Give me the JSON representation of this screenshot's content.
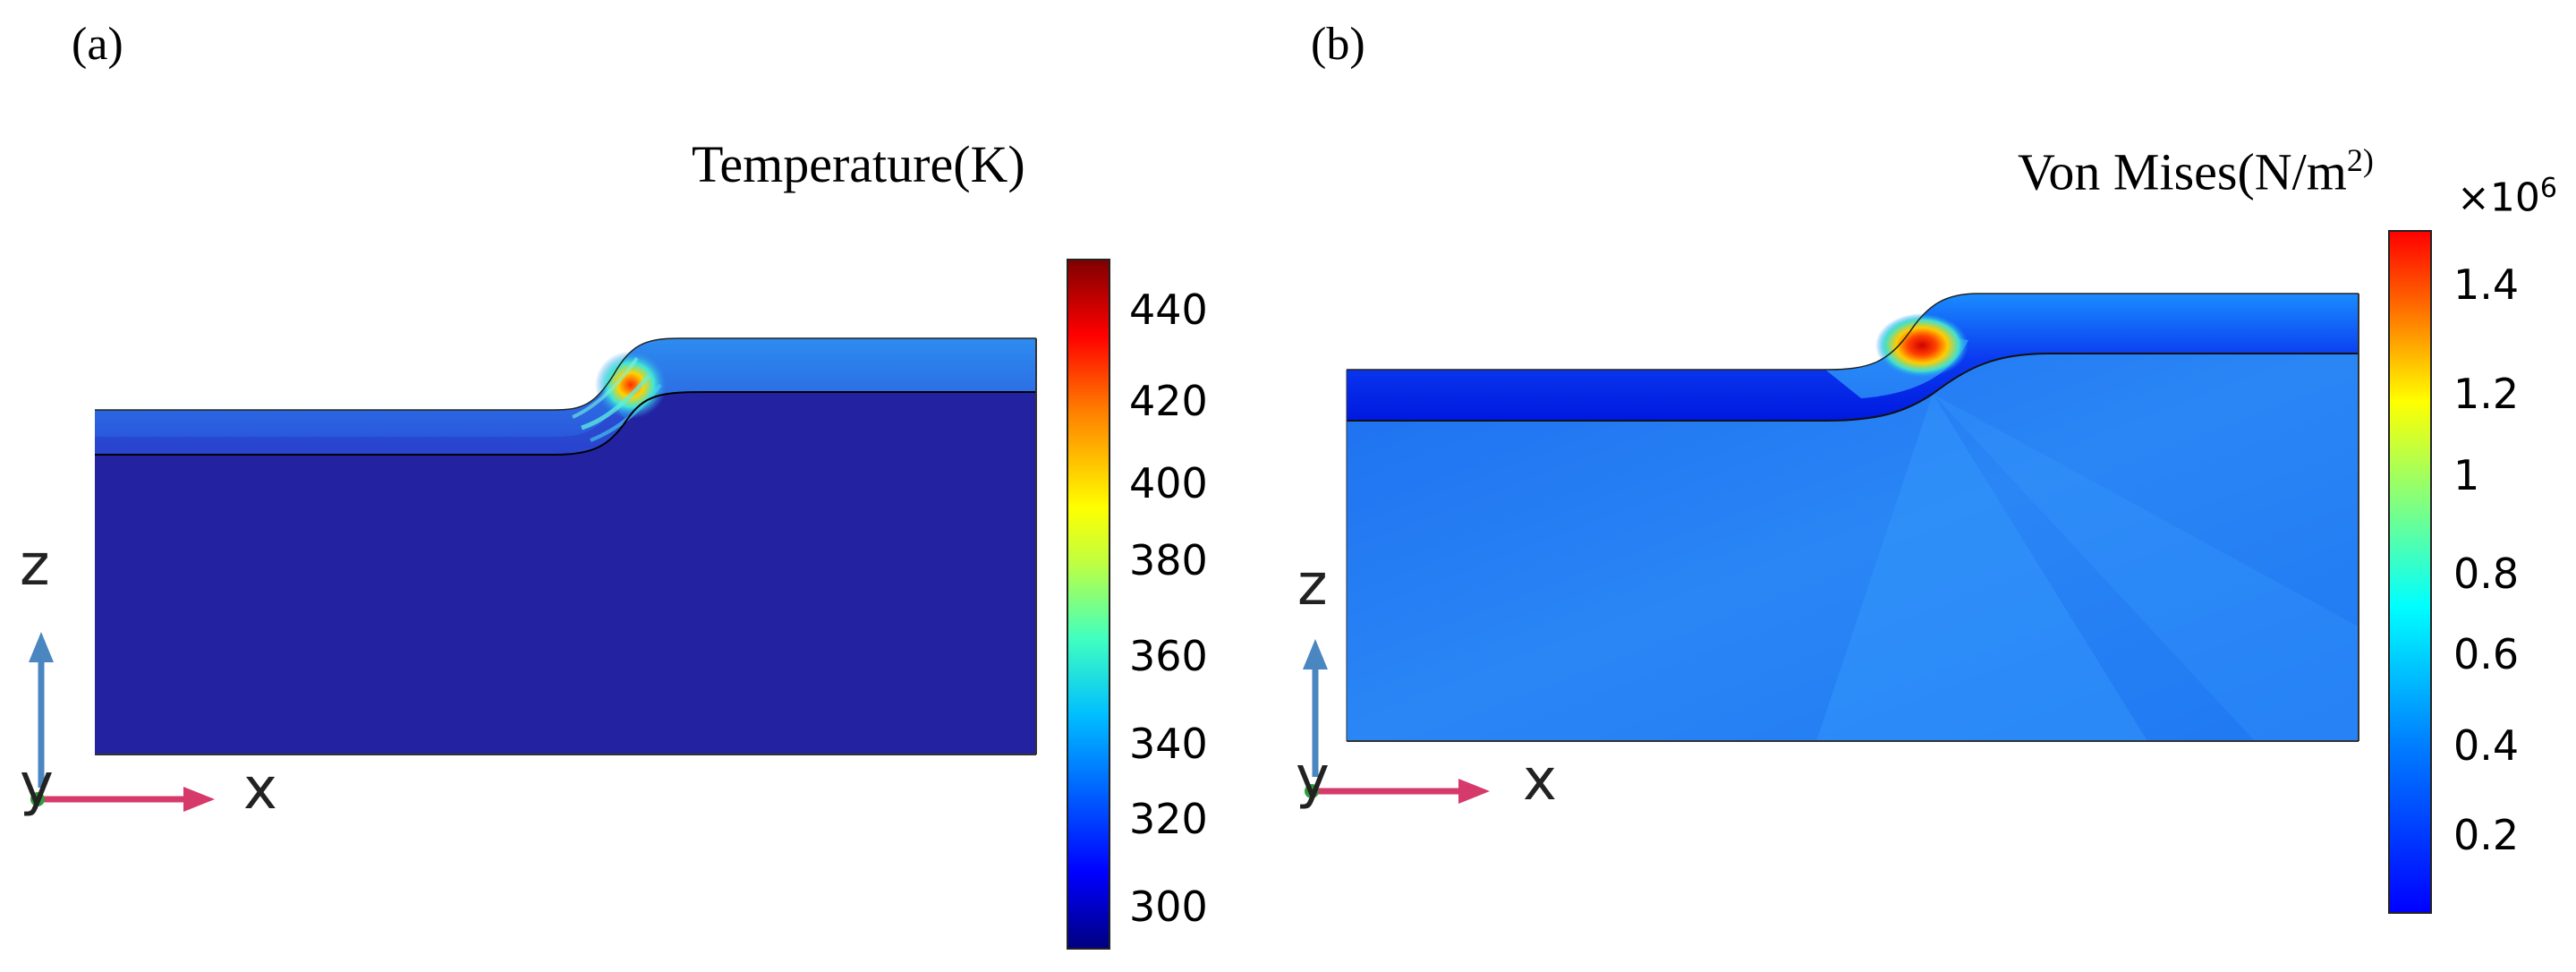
{
  "panels": [
    {
      "label": "(a)",
      "title": "Temperature(K)",
      "colorbar": {
        "ticks": [
          "440",
          "420",
          "400",
          "380",
          "360",
          "340",
          "320",
          "300"
        ],
        "multiplier": ""
      },
      "axes": {
        "z": "z",
        "x": "x",
        "y": "y"
      }
    },
    {
      "label": "(b)",
      "title_main": "Von Mises(N/m",
      "title_sup": "2)",
      "colorbar": {
        "ticks": [
          "1.4",
          "1.2",
          "1",
          "0.8",
          "0.6",
          "0.4",
          "0.2"
        ],
        "multiplier_base": "×10",
        "multiplier_exp": "6"
      },
      "axes": {
        "z": "z",
        "x": "x",
        "y": "y"
      }
    }
  ],
  "colors": {
    "jet": [
      "#00007f",
      "#0000ff",
      "#007fff",
      "#00ffff",
      "#7fff7f",
      "#ffff00",
      "#ff7f00",
      "#ff0000",
      "#7f0000"
    ],
    "substrate_a": "#2323a2",
    "substrate_b": "#1f73f0",
    "axis_blue": "#4a86c0",
    "axis_red": "#d63a6a"
  }
}
